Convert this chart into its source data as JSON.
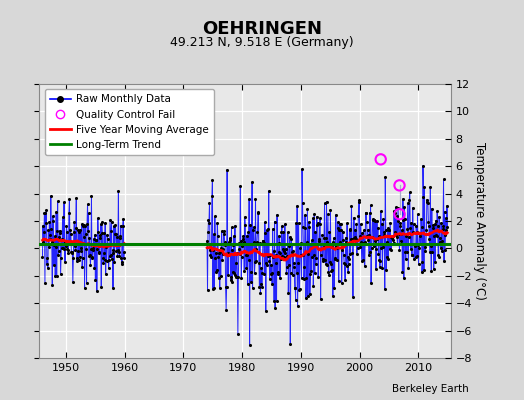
{
  "title": "OEHRINGEN",
  "subtitle": "49.213 N, 9.518 E (Germany)",
  "ylabel": "Temperature Anomaly (°C)",
  "credit": "Berkeley Earth",
  "ylim": [
    -8,
    12
  ],
  "yticks": [
    -8,
    -6,
    -4,
    -2,
    0,
    2,
    4,
    6,
    8,
    10,
    12
  ],
  "xlim": [
    1945.5,
    2015.5
  ],
  "xticks": [
    1950,
    1960,
    1970,
    1980,
    1990,
    2000,
    2010
  ],
  "bg_color": "#d8d8d8",
  "plot_bg": "#e8e8e8",
  "grid_color": "#ffffff",
  "segment1_start": 1946,
  "segment1_end": 1959,
  "segment2_start": 1974,
  "segment2_end": 2014,
  "qc_point1": [
    2003.6,
    6.5
  ],
  "qc_point2": [
    2006.8,
    4.6
  ],
  "qc_point3": [
    2006.8,
    2.5
  ],
  "trend_y": 0.3,
  "title_fontsize": 13,
  "subtitle_fontsize": 9,
  "tick_fontsize": 8,
  "ylabel_fontsize": 8.5,
  "legend_fontsize": 7.5,
  "credit_fontsize": 7.5
}
